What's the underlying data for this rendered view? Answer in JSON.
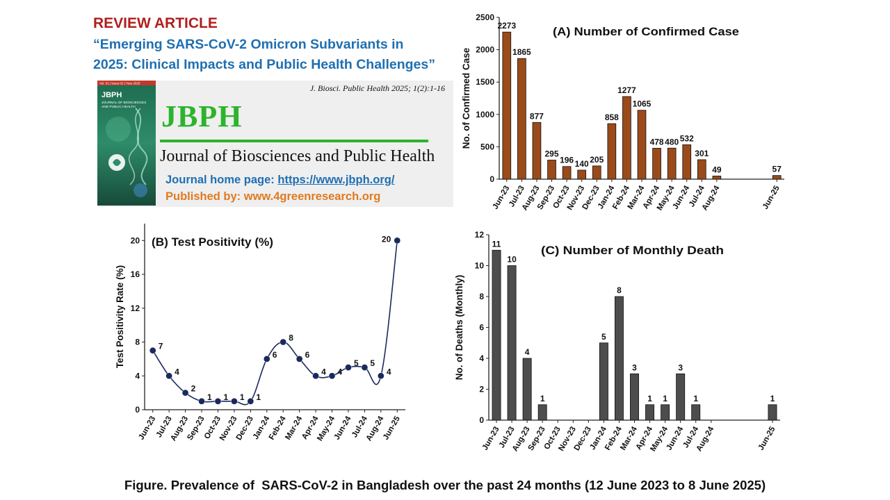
{
  "header": {
    "review_label": "REVIEW ARTICLE",
    "title_line1": "“Emerging SARS-CoV-2 Omicron Subvariants in",
    "title_line2": "2025: Clinical Impacts and Public Health Challenges”"
  },
  "journal": {
    "citation": "J. Biosci. Public Health 2025; 1(2):1-16",
    "logo": "JBPH",
    "name": "Journal of Biosciences and Public Health",
    "homepage_label": "Journal home page:",
    "homepage_url": "https://www.jbph.org/",
    "publisher": "Published by: www.4greenresearch.org",
    "cover": {
      "title": "JBPH",
      "subtitle_line1": "JOURNAL OF BIOSCIENCES",
      "subtitle_line2": "AND PUBLIC HEALTH",
      "top_line": "Vol. 01 | Issue 02 | Year 2025"
    }
  },
  "colors": {
    "cases_bar": "#9b4a1a",
    "positivity_line": "#1b2a5e",
    "deaths_bar": "#4d4d4d",
    "green": "#2cb42c",
    "blue_text": "#1f6fb2",
    "orange_text": "#e07a20",
    "red_text": "#b01e1e"
  },
  "chart_data": [
    {
      "type": "bar",
      "title": "(A) Number of Confirmed Case",
      "ylabel": "No. of Confirmed Case",
      "ylim": [
        0,
        2500
      ],
      "yticks": [
        "0",
        "500",
        "1000",
        "1500",
        "2000",
        "2500"
      ],
      "categories": [
        "Jun-23",
        "Jul-23",
        "Aug-23",
        "Sep-23",
        "Oct-23",
        "Nov-23",
        "Dec-23",
        "Jan-24",
        "Feb-24",
        "Mar-24",
        "Apr-24",
        "May-24",
        "Jun-24",
        "Jul-24",
        "Aug-24",
        "",
        "",
        "",
        "Jun-25"
      ],
      "values": [
        2273,
        1865,
        877,
        295,
        196,
        140,
        205,
        858,
        1277,
        1065,
        478,
        480,
        532,
        301,
        49,
        null,
        null,
        null,
        57
      ],
      "labels": [
        "2273",
        "1865",
        "877",
        "295",
        "196",
        "140",
        "205",
        "858",
        "1277",
        "1065",
        "478",
        "480",
        "532",
        "301",
        "49",
        "",
        "",
        "",
        "57"
      ],
      "grid": false
    },
    {
      "type": "line",
      "title": "(B) Test Positivity (%)",
      "ylabel": "Test Positivity Rate (%)",
      "ylim": [
        0,
        22
      ],
      "yticks": [
        "0",
        "4",
        "8",
        "12",
        "16",
        "20"
      ],
      "categories": [
        "Jun-23",
        "Jul-23",
        "Aug-23",
        "Sep-23",
        "Oct-23",
        "Nov-23",
        "Dec-23",
        "Jan-24",
        "Feb-24",
        "Mar-24",
        "Apr-24",
        "May-24",
        "Jun-24",
        "Jul-24",
        "Aug-24",
        "Jun-25"
      ],
      "values": [
        7,
        4,
        2,
        1,
        1,
        1,
        1,
        6,
        8,
        6,
        4,
        4,
        5,
        5,
        4,
        20
      ],
      "labels": [
        "7",
        "4",
        "2",
        "1",
        "1",
        "1",
        "1",
        "6",
        "8",
        "6",
        "4",
        "4",
        "5",
        "5",
        "4",
        "20"
      ],
      "grid": false
    },
    {
      "type": "bar",
      "title": "(C) Number of Monthly Death",
      "ylabel": "No. of Deaths (Monthly)",
      "ylim": [
        0,
        12
      ],
      "yticks": [
        "0",
        "2",
        "4",
        "6",
        "8",
        "10",
        "12"
      ],
      "categories": [
        "Jun-23",
        "Jul-23",
        "Aug-23",
        "Sep-23",
        "Oct-23",
        "Nov-23",
        "Dec-23",
        "Jan-24",
        "Feb-24",
        "Mar-24",
        "Apr-24",
        "May-24",
        "Jun-24",
        "Jul-24",
        "Aug-24",
        "",
        "",
        "",
        "Jun-25"
      ],
      "values": [
        11,
        10,
        4,
        1,
        null,
        null,
        null,
        5,
        8,
        3,
        1,
        1,
        3,
        1,
        null,
        null,
        null,
        null,
        1
      ],
      "labels": [
        "11",
        "10",
        "4",
        "1",
        "",
        "",
        "",
        "5",
        "8",
        "3",
        "1",
        "1",
        "3",
        "1",
        "",
        "",
        "",
        "",
        "1"
      ],
      "grid": false
    }
  ],
  "caption": "Figure. Prevalence of  SARS-CoV-2 in Bangladesh over the past 24 months (12 June 2023 to 8 June 2025)"
}
